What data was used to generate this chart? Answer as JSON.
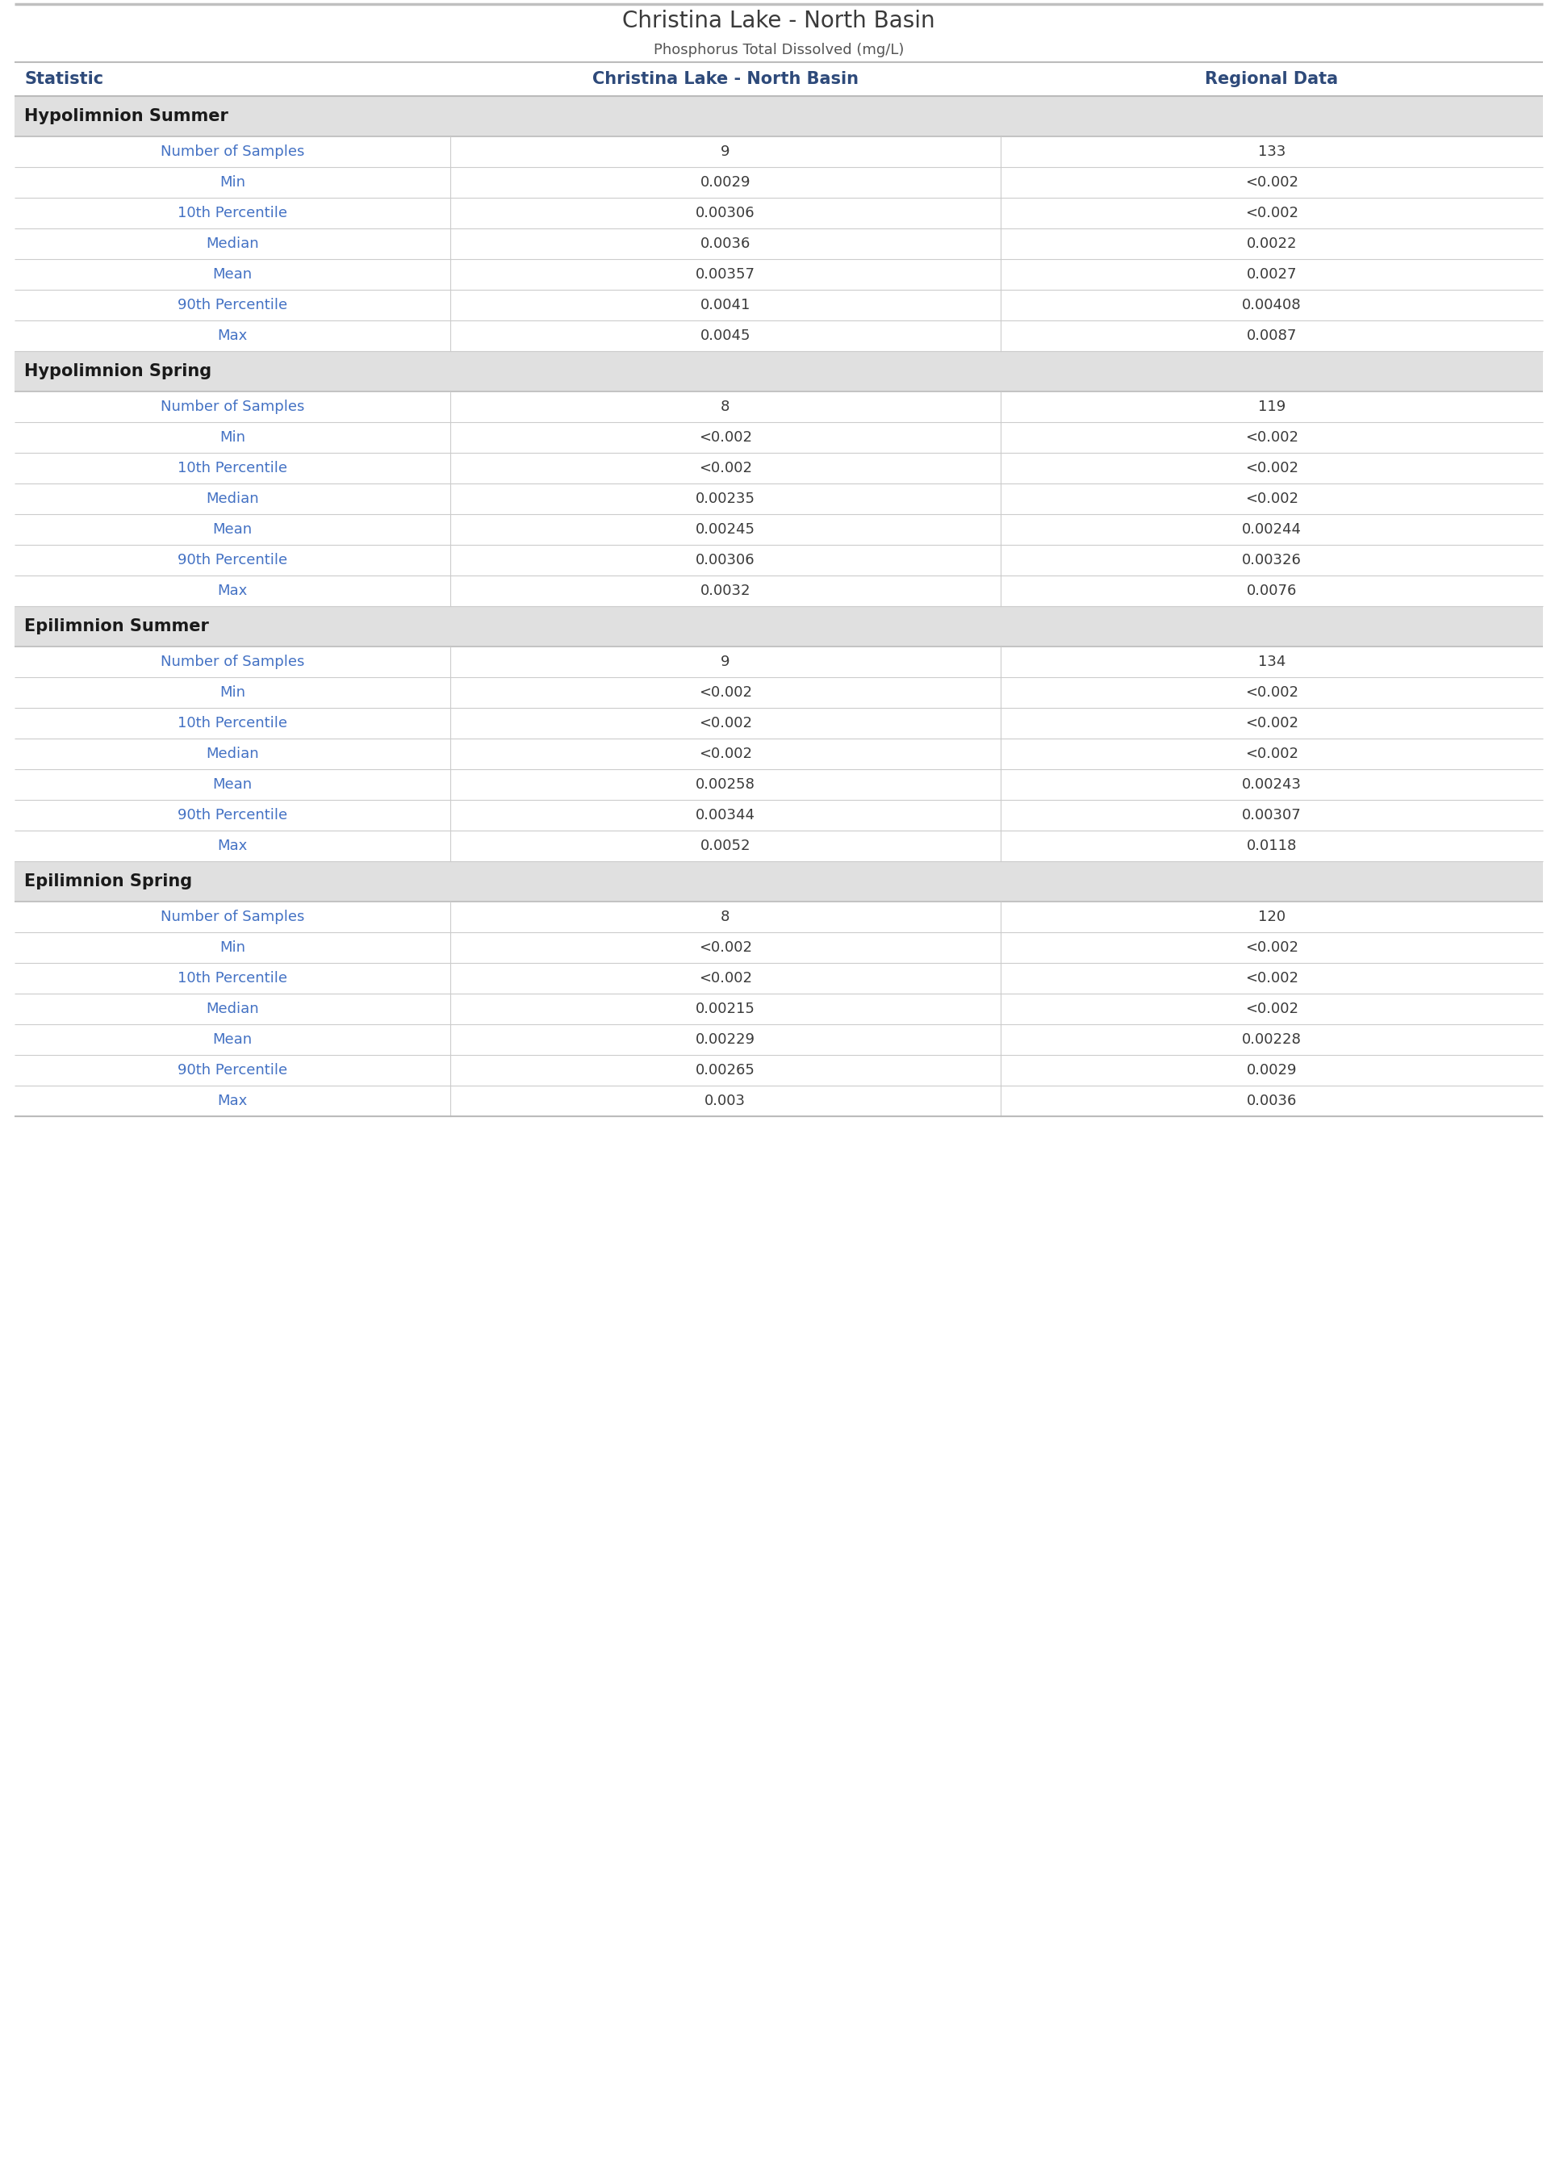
{
  "title": "Christina Lake - North Basin",
  "subtitle": "Phosphorus Total Dissolved (mg/L)",
  "col_headers": [
    "Statistic",
    "Christina Lake - North Basin",
    "Regional Data"
  ],
  "sections": [
    {
      "name": "Hypolimnion Summer",
      "rows": [
        [
          "Number of Samples",
          "9",
          "133"
        ],
        [
          "Min",
          "0.0029",
          "<0.002"
        ],
        [
          "10th Percentile",
          "0.00306",
          "<0.002"
        ],
        [
          "Median",
          "0.0036",
          "0.0022"
        ],
        [
          "Mean",
          "0.00357",
          "0.0027"
        ],
        [
          "90th Percentile",
          "0.0041",
          "0.00408"
        ],
        [
          "Max",
          "0.0045",
          "0.0087"
        ]
      ]
    },
    {
      "name": "Hypolimnion Spring",
      "rows": [
        [
          "Number of Samples",
          "8",
          "119"
        ],
        [
          "Min",
          "<0.002",
          "<0.002"
        ],
        [
          "10th Percentile",
          "<0.002",
          "<0.002"
        ],
        [
          "Median",
          "0.00235",
          "<0.002"
        ],
        [
          "Mean",
          "0.00245",
          "0.00244"
        ],
        [
          "90th Percentile",
          "0.00306",
          "0.00326"
        ],
        [
          "Max",
          "0.0032",
          "0.0076"
        ]
      ]
    },
    {
      "name": "Epilimnion Summer",
      "rows": [
        [
          "Number of Samples",
          "9",
          "134"
        ],
        [
          "Min",
          "<0.002",
          "<0.002"
        ],
        [
          "10th Percentile",
          "<0.002",
          "<0.002"
        ],
        [
          "Median",
          "<0.002",
          "<0.002"
        ],
        [
          "Mean",
          "0.00258",
          "0.00243"
        ],
        [
          "90th Percentile",
          "0.00344",
          "0.00307"
        ],
        [
          "Max",
          "0.0052",
          "0.0118"
        ]
      ]
    },
    {
      "name": "Epilimnion Spring",
      "rows": [
        [
          "Number of Samples",
          "8",
          "120"
        ],
        [
          "Min",
          "<0.002",
          "<0.002"
        ],
        [
          "10th Percentile",
          "<0.002",
          "<0.002"
        ],
        [
          "Median",
          "0.00215",
          "<0.002"
        ],
        [
          "Mean",
          "0.00229",
          "0.00228"
        ],
        [
          "90th Percentile",
          "0.00265",
          "0.0029"
        ],
        [
          "Max",
          "0.003",
          "0.0036"
        ]
      ]
    }
  ],
  "title_color": "#3a3a3a",
  "subtitle_color": "#555555",
  "header_text_color": "#2E4A7A",
  "section_bg_color": "#E0E0E0",
  "section_text_color": "#1a1a1a",
  "row_bg_white": "#FFFFFF",
  "row_bg_gray": "#F5F5F5",
  "stat_name_color": "#4472C4",
  "value_text_color": "#3a3a3a",
  "border_color": "#CCCCCC",
  "top_border_color": "#BBBBBB",
  "col_split1": 0.285,
  "col_split2": 0.645,
  "title_fontsize": 20,
  "subtitle_fontsize": 13,
  "header_fontsize": 15,
  "section_fontsize": 15,
  "cell_fontsize": 13
}
